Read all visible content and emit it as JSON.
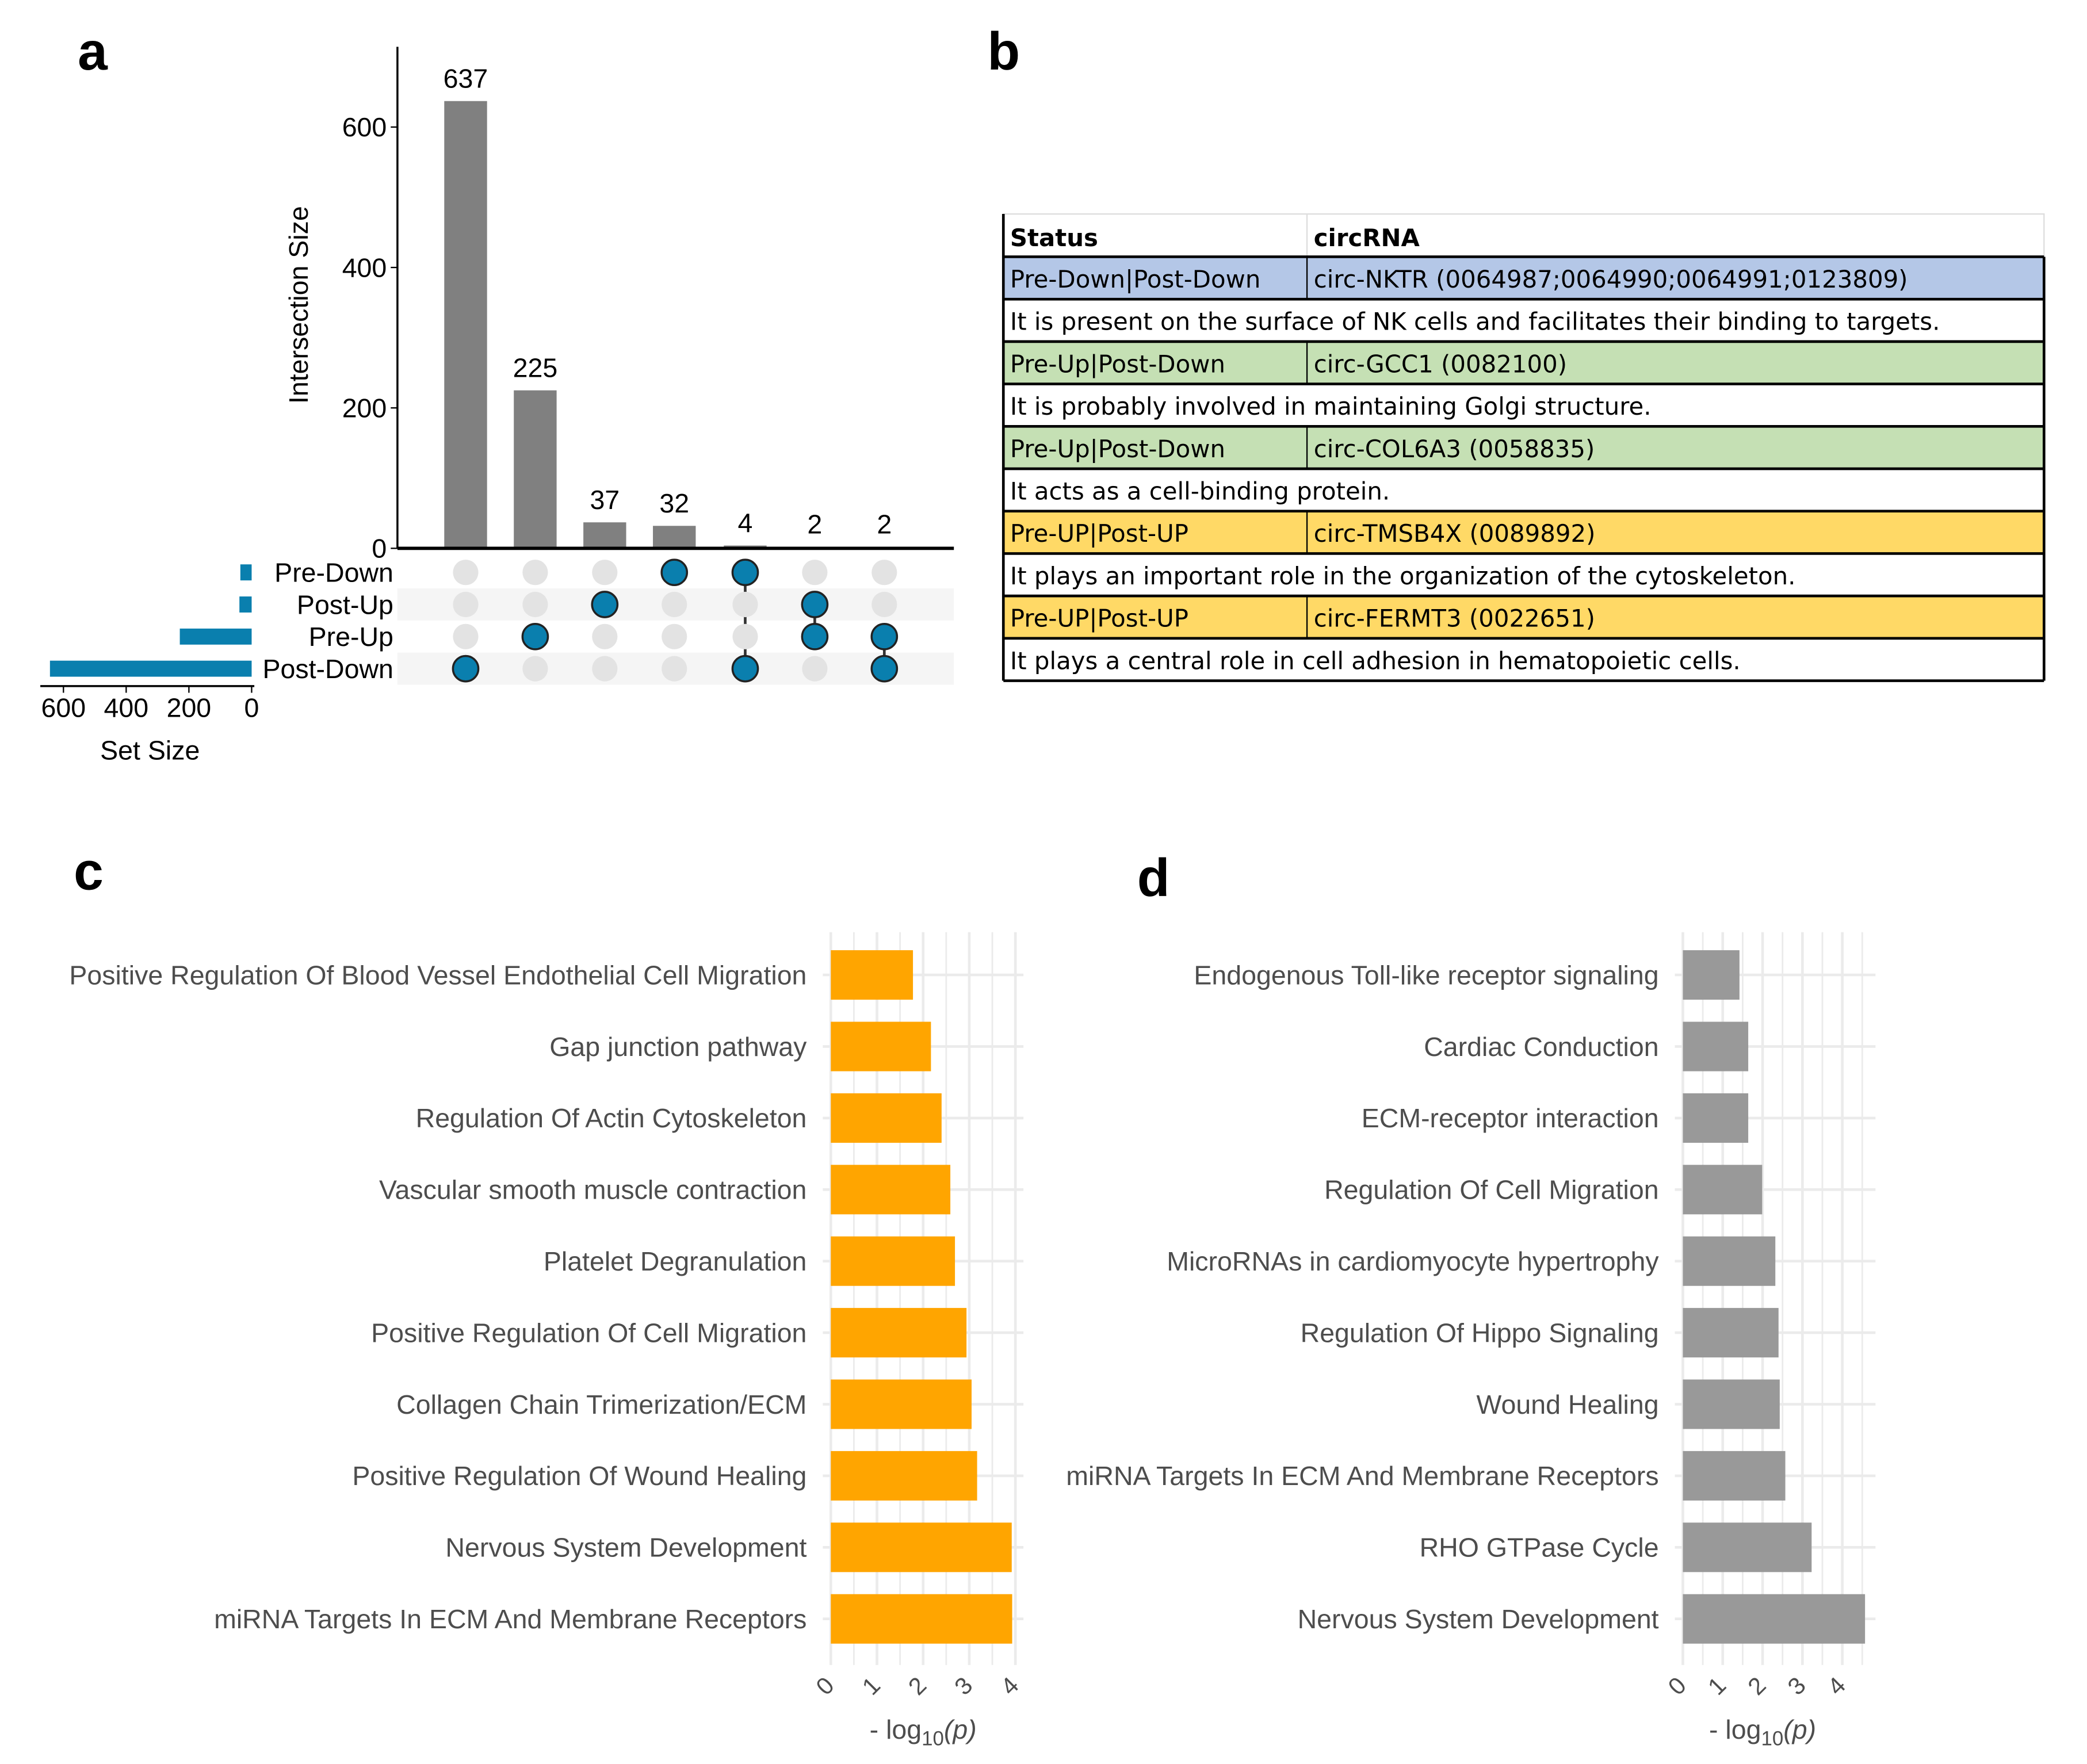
{
  "panels": {
    "a": "a",
    "b": "b",
    "c": "c",
    "d": "d"
  },
  "chart_data": [
    {
      "type": "bar",
      "subtype": "upset",
      "title": "",
      "ylabel": "Intersection Size",
      "ylim": [
        0,
        700
      ],
      "yticks": [
        0,
        200,
        400,
        600
      ],
      "values": [
        637,
        225,
        37,
        32,
        4,
        2,
        2
      ],
      "value_labels": [
        "637",
        "225",
        "37",
        "32",
        "4",
        "2",
        "2"
      ],
      "sets": [
        "Pre-Down",
        "Post-Up",
        "Pre-Up",
        "Post-Down"
      ],
      "set_sizes": [
        36,
        39,
        229,
        643
      ],
      "set_size_label": "Set Size",
      "set_size_ticks": [
        600,
        400,
        200,
        0
      ],
      "intersections": [
        [
          "Post-Down"
        ],
        [
          "Pre-Up"
        ],
        [
          "Post-Up"
        ],
        [
          "Pre-Down"
        ],
        [
          "Pre-Down",
          "Post-Down"
        ],
        [
          "Post-Up",
          "Pre-Up"
        ],
        [
          "Pre-Up",
          "Post-Down"
        ]
      ],
      "bar_color": "#808080",
      "dot_color": "#0a7fae"
    },
    {
      "type": "table",
      "headers": [
        "Status",
        "circRNA"
      ],
      "rows": [
        {
          "status": "Pre-Down|Post-Down",
          "circrna": "circ-NKTR (0064987;0064990;0064991;0123809)",
          "color": "#b4c7e7",
          "note": "It is present on the surface of NK cells and facilitates their binding to targets."
        },
        {
          "status": "Pre-Up|Post-Down",
          "circrna": "circ-GCC1 (0082100)",
          "color": "#c5e0b4",
          "note": "It is probably involved in maintaining Golgi structure."
        },
        {
          "status": "Pre-Up|Post-Down",
          "circrna": "circ-COL6A3 (0058835)",
          "color": "#c5e0b4",
          "note": "It acts as a cell-binding protein."
        },
        {
          "status": "Pre-UP|Post-UP",
          "circrna": "circ-TMSB4X (0089892)",
          "color": "#ffd966",
          "note": "It plays an important role in the organization of the cytoskeleton."
        },
        {
          "status": "Pre-UP|Post-UP",
          "circrna": "circ-FERMT3 (0022651)",
          "color": "#ffd966",
          "note": "It plays a central role in cell adhesion in hematopoietic cells."
        }
      ]
    },
    {
      "type": "bar",
      "orientation": "horizontal",
      "xlabel": "- log10(p)",
      "xlabel_main": "- log",
      "xlabel_sub": "10",
      "xlabel_tail": "(p)",
      "xlim": [
        0,
        4.1
      ],
      "xticks": [
        "0",
        "1",
        "2",
        "3",
        "4"
      ],
      "categories": [
        "Positive Regulation Of Blood Vessel Endothelial Cell Migration",
        "Gap junction pathway",
        "Regulation Of Actin Cytoskeleton",
        "Vascular smooth muscle contraction",
        "Platelet Degranulation",
        "Positive Regulation Of Cell Migration",
        "Collagen Chain Trimerization/ECM",
        "Positive Regulation Of Wound Healing",
        "Nervous System Development",
        "miRNA Targets In ECM And Membrane Receptors"
      ],
      "values": [
        1.78,
        2.17,
        2.4,
        2.59,
        2.69,
        2.94,
        3.05,
        3.17,
        3.92,
        3.93
      ],
      "color": "#ffa500"
    },
    {
      "type": "bar",
      "orientation": "horizontal",
      "xlabel": "- log10(p)",
      "xlabel_main": "- log",
      "xlabel_sub": "10",
      "xlabel_tail": "(p)",
      "xlim": [
        0,
        4.8
      ],
      "xticks": [
        "0",
        "1",
        "2",
        "3",
        "4"
      ],
      "categories": [
        "Endogenous Toll-like receptor signaling",
        "Cardiac Conduction",
        "ECM-receptor interaction",
        "Regulation Of Cell Migration",
        "MicroRNAs in cardiomyocyte hypertrophy",
        "Regulation Of Hippo Signaling",
        "Wound Healing",
        "miRNA Targets In ECM And Membrane Receptors",
        "RHO GTPase Cycle",
        "Nervous System Development"
      ],
      "values": [
        1.42,
        1.64,
        1.64,
        1.99,
        2.32,
        2.4,
        2.43,
        2.57,
        3.23,
        4.57
      ],
      "color": "#999999"
    }
  ]
}
